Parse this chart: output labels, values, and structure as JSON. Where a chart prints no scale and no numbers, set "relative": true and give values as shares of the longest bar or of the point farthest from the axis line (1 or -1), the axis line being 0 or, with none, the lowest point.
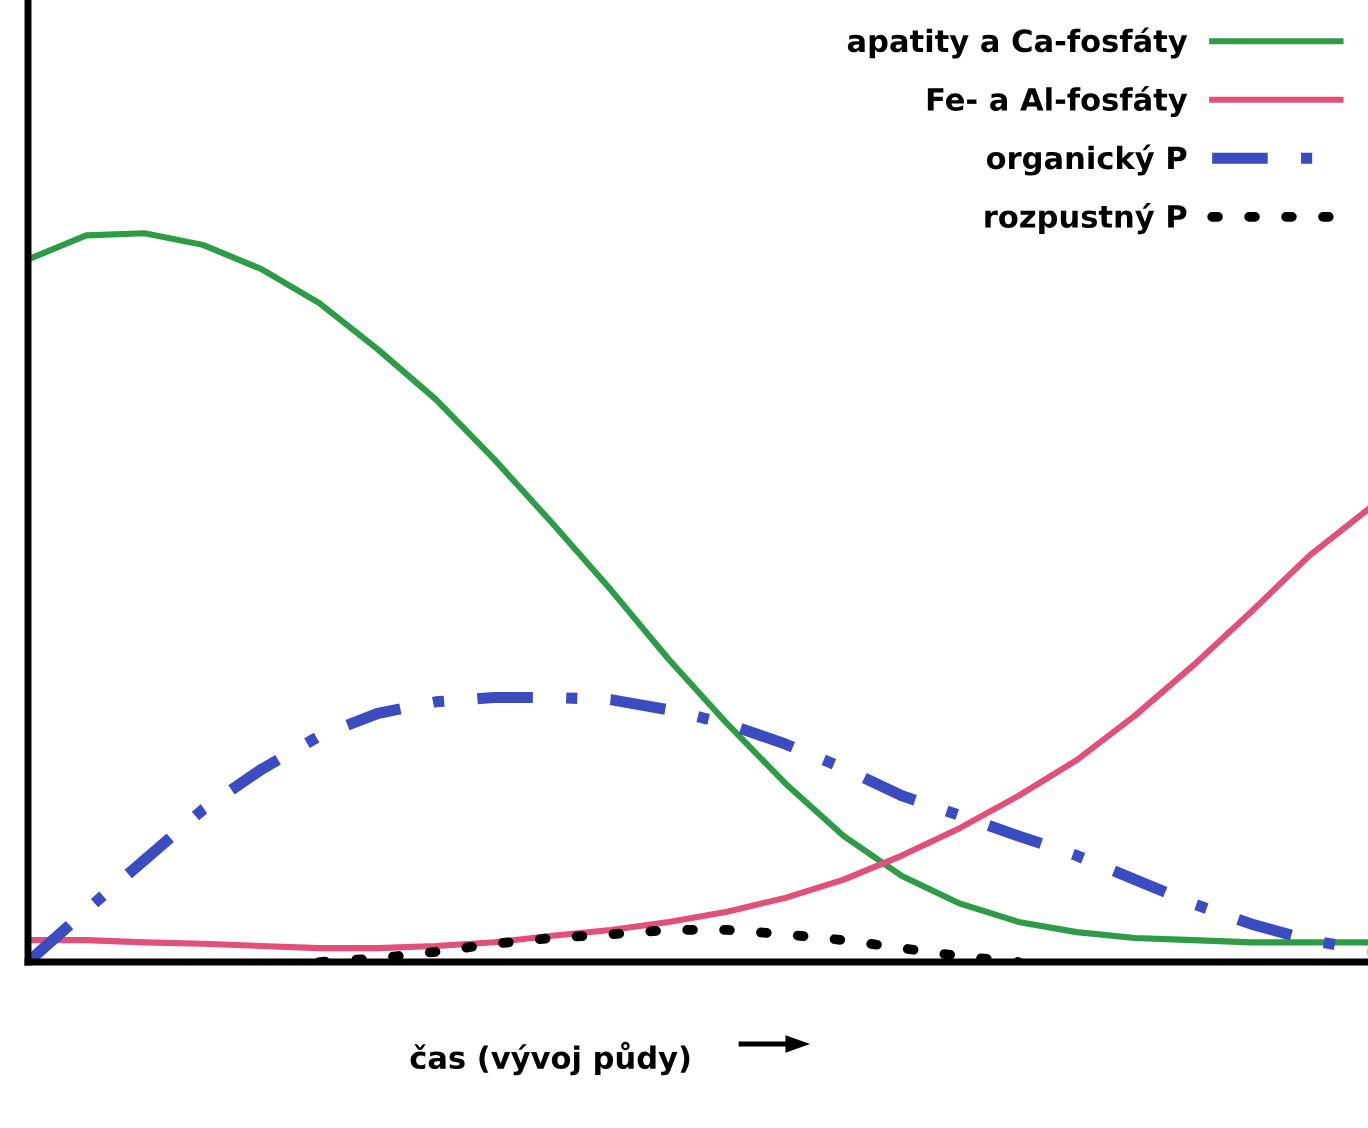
{
  "chart_data": {
    "type": "line",
    "relative": true,
    "xlabel": "čas (vývoj půdy)",
    "legend": "top right",
    "grid": false,
    "categories": [
      null,
      null,
      null,
      null,
      null,
      null,
      null,
      null,
      null,
      null,
      null,
      null,
      null,
      null,
      null,
      null,
      null,
      null,
      null,
      null,
      null,
      null,
      null,
      null
    ],
    "series": [
      {
        "name": "apatity a Ca-fosfáty",
        "color": "#2e9b47",
        "line_style": "solid",
        "values": [
          0.964,
          0.997,
          1.0,
          0.984,
          0.951,
          0.904,
          0.841,
          0.772,
          0.69,
          0.602,
          0.511,
          0.415,
          0.327,
          0.245,
          0.173,
          0.118,
          0.08,
          0.055,
          0.041,
          0.033,
          0.03,
          0.027,
          0.027,
          0.027
        ]
      },
      {
        "name": "Fe- a Al-fosfáty",
        "color": "#e0507a",
        "line_style": "solid",
        "values": [
          0.03,
          0.03,
          0.027,
          0.025,
          0.022,
          0.019,
          0.019,
          0.022,
          0.027,
          0.036,
          0.044,
          0.055,
          0.069,
          0.088,
          0.113,
          0.146,
          0.184,
          0.228,
          0.277,
          0.338,
          0.407,
          0.481,
          0.558,
          0.621
        ]
      },
      {
        "name": "organický P",
        "color": "#3b4cc0",
        "line_style": "dashdot",
        "values": [
          0,
          0.071,
          0.14,
          0.209,
          0.264,
          0.31,
          0.341,
          0.357,
          0.363,
          0.363,
          0.36,
          0.346,
          0.327,
          0.299,
          0.266,
          0.228,
          0.201,
          0.173,
          0.146,
          0.113,
          0.08,
          0.052,
          0.03,
          0.016
        ]
      },
      {
        "name": "rozpustný P",
        "color": "#000000",
        "line_style": "dotted",
        "values": [
          null,
          null,
          null,
          null,
          null,
          0,
          0.005,
          0.014,
          0.025,
          0.033,
          0.038,
          0.044,
          0.044,
          0.038,
          0.03,
          0.019,
          0.008,
          0,
          null,
          null,
          null,
          null,
          null,
          null
        ]
      }
    ]
  }
}
